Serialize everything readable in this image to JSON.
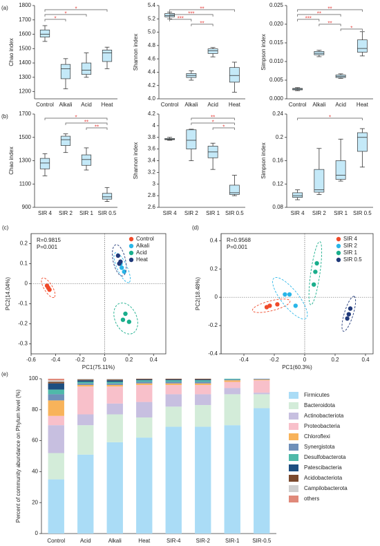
{
  "chart_data": [
    {
      "type": "box",
      "panel": "(a)",
      "ylabel": "Chao index",
      "color": "#c4e9f8",
      "categories": [
        "Control",
        "Alkali",
        "Acid",
        "Heat"
      ],
      "boxes": [
        {
          "min": 1550,
          "q1": 1580,
          "median": 1600,
          "q3": 1630,
          "max": 1660
        },
        {
          "min": 1220,
          "q1": 1290,
          "median": 1360,
          "q3": 1390,
          "max": 1430
        },
        {
          "min": 1300,
          "q1": 1320,
          "median": 1350,
          "q3": 1400,
          "max": 1470
        },
        {
          "min": 1360,
          "q1": 1410,
          "median": 1470,
          "q3": 1490,
          "max": 1510
        }
      ],
      "brackets": [
        {
          "from": 0,
          "to": 3,
          "label": "*"
        },
        {
          "from": 0,
          "to": 2,
          "label": "*"
        },
        {
          "from": 0,
          "to": 1,
          "label": "*"
        }
      ],
      "ylim": [
        1150,
        1800
      ],
      "yticks": [
        1200,
        1300,
        1400,
        1500,
        1600,
        1700,
        1800
      ]
    },
    {
      "type": "box",
      "ylabel": "Shannon index",
      "color": "#c4e9f8",
      "categories": [
        "Control",
        "Alkali",
        "Acid",
        "Heat"
      ],
      "boxes": [
        {
          "min": 5.2,
          "q1": 5.23,
          "median": 5.25,
          "q3": 5.28,
          "max": 5.3
        },
        {
          "min": 4.28,
          "q1": 4.32,
          "median": 4.35,
          "q3": 4.38,
          "max": 4.42
        },
        {
          "min": 4.63,
          "q1": 4.68,
          "median": 4.72,
          "q3": 4.75,
          "max": 4.77
        },
        {
          "min": 4.1,
          "q1": 4.25,
          "median": 4.35,
          "q3": 4.47,
          "max": 4.55
        }
      ],
      "brackets": [
        {
          "from": 0,
          "to": 3,
          "label": "**"
        },
        {
          "from": 0,
          "to": 2,
          "label": "***"
        },
        {
          "from": 0,
          "to": 1,
          "label": "***"
        },
        {
          "from": 1,
          "to": 2,
          "label": "**"
        }
      ],
      "ylim": [
        4,
        5.4
      ],
      "yticks": [
        {
          "value": 4,
          "label": "4.0"
        },
        4.2,
        4.4,
        4.6,
        4.8,
        {
          "value": 5,
          "label": "5.0"
        },
        5.2,
        5.4
      ]
    },
    {
      "type": "box",
      "ylabel": "Simpson index",
      "color": "#c4e9f8",
      "categories": [
        "Control",
        "Alkali",
        "Acid",
        "Heat"
      ],
      "boxes": [
        {
          "min": 0.0022,
          "q1": 0.0024,
          "median": 0.0026,
          "q3": 0.0028,
          "max": 0.003
        },
        {
          "min": 0.0113,
          "q1": 0.0118,
          "median": 0.0122,
          "q3": 0.0127,
          "max": 0.013
        },
        {
          "min": 0.0055,
          "q1": 0.0057,
          "median": 0.006,
          "q3": 0.0064,
          "max": 0.0067
        },
        {
          "min": 0.0115,
          "q1": 0.0125,
          "median": 0.0135,
          "q3": 0.0158,
          "max": 0.018
        }
      ],
      "brackets": [
        {
          "from": 0,
          "to": 3,
          "label": "**"
        },
        {
          "from": 0,
          "to": 2,
          "label": "**"
        },
        {
          "from": 0,
          "to": 1,
          "label": "***"
        },
        {
          "from": 1,
          "to": 2,
          "label": "**"
        },
        {
          "from": 2,
          "to": 3,
          "label": "*"
        }
      ],
      "ylim": [
        0,
        0.025
      ],
      "yticks": [
        {
          "value": 0,
          "label": "0.000"
        },
        {
          "value": 0.005,
          "label": "0.005"
        },
        {
          "value": 0.01,
          "label": "0.010"
        },
        {
          "value": 0.015,
          "label": "0.015"
        },
        {
          "value": 0.02,
          "label": "0.020"
        },
        {
          "value": 0.025,
          "label": "0.025"
        }
      ]
    },
    {
      "type": "box",
      "panel": "(b)",
      "ylabel": "Chao index",
      "color": "#c4e9f8",
      "categories": [
        "SIR 4",
        "SIR 2",
        "SIR 1",
        "SIR 0.5"
      ],
      "boxes": [
        {
          "min": 1170,
          "q1": 1230,
          "median": 1280,
          "q3": 1320,
          "max": 1360
        },
        {
          "min": 1370,
          "q1": 1430,
          "median": 1480,
          "q3": 1510,
          "max": 1530
        },
        {
          "min": 1220,
          "q1": 1260,
          "median": 1310,
          "q3": 1350,
          "max": 1410
        },
        {
          "min": 950,
          "q1": 970,
          "median": 990,
          "q3": 1020,
          "max": 1070
        }
      ],
      "brackets": [
        {
          "from": 0,
          "to": 3,
          "label": "*"
        },
        {
          "from": 1,
          "to": 3,
          "label": "**"
        },
        {
          "from": 2,
          "to": 3,
          "label": "**"
        }
      ],
      "ylim": [
        900,
        1700
      ],
      "yticks": [
        900,
        1100,
        1300,
        1500,
        1700
      ]
    },
    {
      "type": "box",
      "ylabel": "Shannon index",
      "color": "#c4e9f8",
      "categories": [
        "SIR 4",
        "SIR 2",
        "SIR 1",
        "SIR 0.5"
      ],
      "boxes": [
        {
          "min": 3.75,
          "q1": 3.76,
          "median": 3.77,
          "q3": 3.78,
          "max": 3.8
        },
        {
          "min": 3.4,
          "q1": 3.6,
          "median": 3.75,
          "q3": 3.93,
          "max": 3.94
        },
        {
          "min": 3.25,
          "q1": 3.45,
          "median": 3.55,
          "q3": 3.65,
          "max": 3.7
        },
        {
          "min": 2.8,
          "q1": 2.82,
          "median": 2.85,
          "q3": 2.98,
          "max": 3.15
        }
      ],
      "brackets": [
        {
          "from": 1,
          "to": 3,
          "label": "**"
        },
        {
          "from": 1,
          "to": 3,
          "label": "*"
        },
        {
          "from": 2,
          "to": 3,
          "label": "*"
        }
      ],
      "ylim": [
        2.6,
        4.2
      ],
      "yticks": [
        2.6,
        2.8,
        3,
        3.2,
        3.4,
        3.6,
        3.8,
        4,
        4.2
      ]
    },
    {
      "type": "box",
      "ylabel": "Simpson index",
      "color": "#c4e9f8",
      "categories": [
        "SIR 4",
        "SIR 2",
        "SIR 1",
        "SIR 0.5"
      ],
      "boxes": [
        {
          "min": 0.093,
          "q1": 0.097,
          "median": 0.1,
          "q3": 0.105,
          "max": 0.11
        },
        {
          "min": 0.102,
          "q1": 0.106,
          "median": 0.11,
          "q3": 0.145,
          "max": 0.181
        },
        {
          "min": 0.125,
          "q1": 0.128,
          "median": 0.135,
          "q3": 0.16,
          "max": 0.197
        },
        {
          "min": 0.149,
          "q1": 0.176,
          "median": 0.2,
          "q3": 0.208,
          "max": 0.215
        }
      ],
      "brackets": [
        {
          "from": 0,
          "to": 3,
          "label": "*"
        }
      ],
      "ylim": [
        0.08,
        0.24
      ],
      "yticks": [
        0.08,
        0.12,
        0.16,
        0.2,
        0.24
      ]
    },
    {
      "type": "scatter",
      "panel": "(c)",
      "xlabel": "PC1(75.11%)",
      "ylabel": "PC2(14.04%)",
      "annotations": [
        "R=0.9815",
        "P=0.001"
      ],
      "legend": "upper right",
      "series": [
        {
          "name": "Control",
          "color": "#f04a2a",
          "x": [
            -0.47,
            -0.46,
            -0.45
          ],
          "values": [
            -0.01,
            -0.02,
            -0.03
          ]
        },
        {
          "name": "Alkali",
          "color": "#29b6e8",
          "x": [
            0.14,
            0.13,
            0.16
          ],
          "values": [
            0.08,
            0.1,
            0.06
          ]
        },
        {
          "name": "Acid",
          "color": "#1aae8c",
          "x": [
            0.17,
            0.15,
            0.2
          ],
          "values": [
            -0.15,
            -0.18,
            -0.19
          ]
        },
        {
          "name": "Heat",
          "color": "#213a7a",
          "x": [
            0.11,
            0.12,
            0.13
          ],
          "values": [
            0.14,
            0.1,
            0.11
          ]
        }
      ],
      "xlim": [
        -0.6,
        0.5
      ],
      "xticks": [
        -0.6,
        -0.4,
        -0.2,
        0,
        0.2,
        0.4
      ],
      "ylim": [
        -0.35,
        0.25
      ],
      "yticks": [
        -0.3,
        -0.2,
        -0.1,
        0,
        0.1,
        0.2
      ]
    },
    {
      "type": "scatter",
      "panel": "(d)",
      "xlabel": "PC1(60.3%)",
      "ylabel": "PC2(18.48%)",
      "annotations": [
        "R=0.9568",
        "P=0.001"
      ],
      "legend": "upper right",
      "series": [
        {
          "name": "SIR 4",
          "color": "#f04a2a",
          "x": [
            -0.25,
            -0.23,
            -0.18
          ],
          "values": [
            -0.07,
            -0.06,
            -0.05
          ]
        },
        {
          "name": "SIR 2",
          "color": "#29b6e8",
          "x": [
            -0.1,
            -0.13,
            -0.06
          ],
          "values": [
            0.02,
            0.02,
            -0.06
          ]
        },
        {
          "name": "SIR 1",
          "color": "#1aae8c",
          "x": [
            0.08,
            0.07,
            0.06
          ],
          "values": [
            0.24,
            0.18,
            0.09
          ]
        },
        {
          "name": "SIR 0.5",
          "color": "#213a7a",
          "x": [
            0.3,
            0.29,
            0.28
          ],
          "values": [
            -0.08,
            -0.12,
            -0.15
          ]
        }
      ],
      "xlim": [
        -0.55,
        0.45
      ],
      "xticks": [
        -0.4,
        -0.2,
        0,
        0.2,
        0.4
      ],
      "ylim": [
        -0.4,
        0.45
      ],
      "yticks": [
        -0.4,
        -0.2,
        0,
        0.2,
        0.4
      ]
    },
    {
      "type": "bar",
      "panel": "(e)",
      "stacked": true,
      "ylabel": "Percent of community abundance on Phylum level (%)",
      "categories": [
        "Control",
        "Acid",
        "Alkali",
        "Heat",
        "SIR-4",
        "SIR-2",
        "SIR-1",
        "SIR-0.5"
      ],
      "series": [
        {
          "name": "Firmicutes",
          "color": "#aadcf6",
          "values": [
            35,
            51,
            59,
            62,
            69,
            69,
            70,
            81
          ]
        },
        {
          "name": "Bacteroidota",
          "color": "#d3ecd9",
          "values": [
            17,
            19,
            18,
            13,
            13,
            14,
            20,
            9
          ]
        },
        {
          "name": "Actinobacteriota",
          "color": "#c7bfe0",
          "values": [
            18,
            7,
            7,
            10,
            8,
            7,
            4,
            1
          ]
        },
        {
          "name": "Proteobacteria",
          "color": "#f8c0ca",
          "values": [
            6,
            18,
            11,
            11,
            6,
            6,
            4,
            8
          ]
        },
        {
          "name": "Chloroflexi",
          "color": "#f8b35a",
          "values": [
            10,
            1,
            1,
            1,
            1,
            1,
            1,
            0.5
          ]
        },
        {
          "name": "Synergistota",
          "color": "#6f90b9",
          "values": [
            4,
            1,
            1,
            1,
            1,
            1,
            0.5,
            0.5
          ]
        },
        {
          "name": "Desulfobacterota",
          "color": "#4fb9a9",
          "values": [
            3,
            1,
            1,
            1,
            1,
            1,
            0.5,
            0
          ]
        },
        {
          "name": "Patescibacteria",
          "color": "#1d4e80",
          "values": [
            4,
            1,
            1,
            0.5,
            0.5,
            0.5,
            0,
            0
          ]
        },
        {
          "name": "Acidobacteriota",
          "color": "#7b4a2e",
          "values": [
            1,
            0.5,
            0.5,
            0.5,
            0.5,
            0.5,
            0,
            0
          ]
        },
        {
          "name": "Campilobacterota",
          "color": "#cfcfcf",
          "values": [
            1,
            0.5,
            0.5,
            0,
            0,
            0,
            0,
            0
          ]
        },
        {
          "name": "others",
          "color": "#e0897a",
          "values": [
            1,
            0,
            0,
            0,
            0,
            0,
            0,
            0
          ]
        }
      ],
      "ylim": [
        0,
        100
      ],
      "yticks": [
        0,
        20,
        40,
        60,
        80,
        100
      ]
    }
  ]
}
